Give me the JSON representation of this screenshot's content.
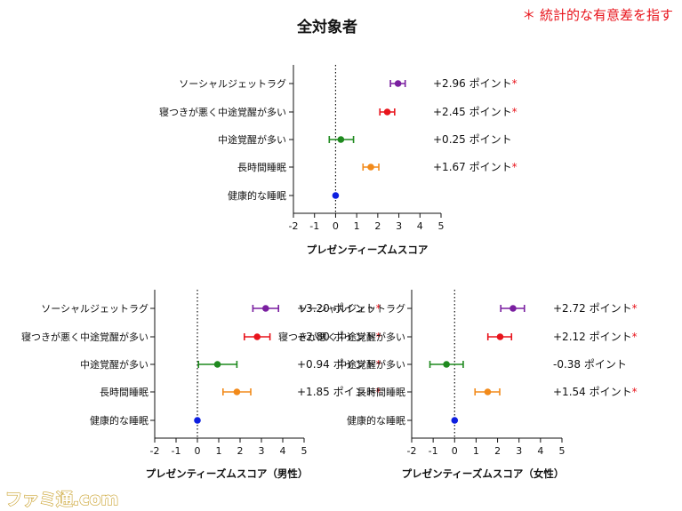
{
  "note": "＊ 統計的な有意差を指す",
  "watermark": "ファミ通.com",
  "colors": {
    "ソーシャルジェットラグ": "#7a1fa0",
    "寝つきが悪く中途覚醒が多い": "#e8141c",
    "中途覚醒が多い": "#1f8a1f",
    "長時間睡眠": "#f28a1a",
    "健康的な睡眠": "#0d1fe0",
    "significance": "#e8141c"
  },
  "chart_data": [
    {
      "type": "forest",
      "title": "全対象者",
      "xlabel": "プレゼンティーズムスコア",
      "xlim": [
        -2,
        5
      ],
      "xticks": [
        "-2",
        "-1",
        "0",
        "1",
        "2",
        "3",
        "4",
        "5"
      ],
      "reference_line": 0,
      "categories": [
        "ソーシャルジェットラグ",
        "寝つきが悪く中途覚醒が多い",
        "中途覚醒が多い",
        "長時間睡眠",
        "健康的な睡眠"
      ],
      "values": [
        2.96,
        2.45,
        0.25,
        1.67,
        0
      ],
      "ci_low": [
        2.6,
        2.1,
        -0.3,
        1.3,
        0
      ],
      "ci_high": [
        3.3,
        2.8,
        0.85,
        2.05,
        0
      ],
      "labels": [
        "+2.96 ポイント",
        "+2.45 ポイント",
        "+0.25 ポイント",
        "+1.67 ポイント",
        ""
      ],
      "significant": [
        true,
        true,
        false,
        true,
        false
      ]
    },
    {
      "type": "forest",
      "title": "",
      "xlabel": "プレゼンティーズムスコア（男性）",
      "xlim": [
        -2,
        5
      ],
      "xticks": [
        "-2",
        "-1",
        "0",
        "1",
        "2",
        "3",
        "4",
        "5"
      ],
      "reference_line": 0,
      "categories": [
        "ソーシャルジェットラグ",
        "寝つきが悪く中途覚醒が多い",
        "中途覚醒が多い",
        "長時間睡眠",
        "健康的な睡眠"
      ],
      "values": [
        3.2,
        2.8,
        0.94,
        1.85,
        0
      ],
      "ci_low": [
        2.6,
        2.2,
        0.05,
        1.2,
        0
      ],
      "ci_high": [
        3.8,
        3.4,
        1.85,
        2.5,
        0
      ],
      "labels": [
        "+3.20 ポイント",
        "+2.80 ポイント",
        "+0.94 ポイント",
        "+1.85 ポイント",
        ""
      ],
      "significant": [
        true,
        true,
        true,
        true,
        false
      ]
    },
    {
      "type": "forest",
      "title": "",
      "xlabel": "プレゼンティーズムスコア（女性）",
      "xlim": [
        -2,
        5
      ],
      "xticks": [
        "-2",
        "-1",
        "0",
        "1",
        "2",
        "3",
        "4",
        "5"
      ],
      "reference_line": 0,
      "categories": [
        "ソーシャルジェットラグ",
        "寝つきが悪く中途覚醒が多い",
        "中途覚醒が多い",
        "長時間睡眠",
        "健康的な睡眠"
      ],
      "values": [
        2.72,
        2.12,
        -0.38,
        1.54,
        0
      ],
      "ci_low": [
        2.15,
        1.55,
        -1.15,
        0.95,
        0
      ],
      "ci_high": [
        3.25,
        2.65,
        0.4,
        2.1,
        0
      ],
      "labels": [
        "+2.72 ポイント",
        "+2.12 ポイント",
        "-0.38 ポイント",
        "+1.54 ポイント",
        ""
      ],
      "significant": [
        true,
        true,
        false,
        true,
        false
      ]
    }
  ]
}
